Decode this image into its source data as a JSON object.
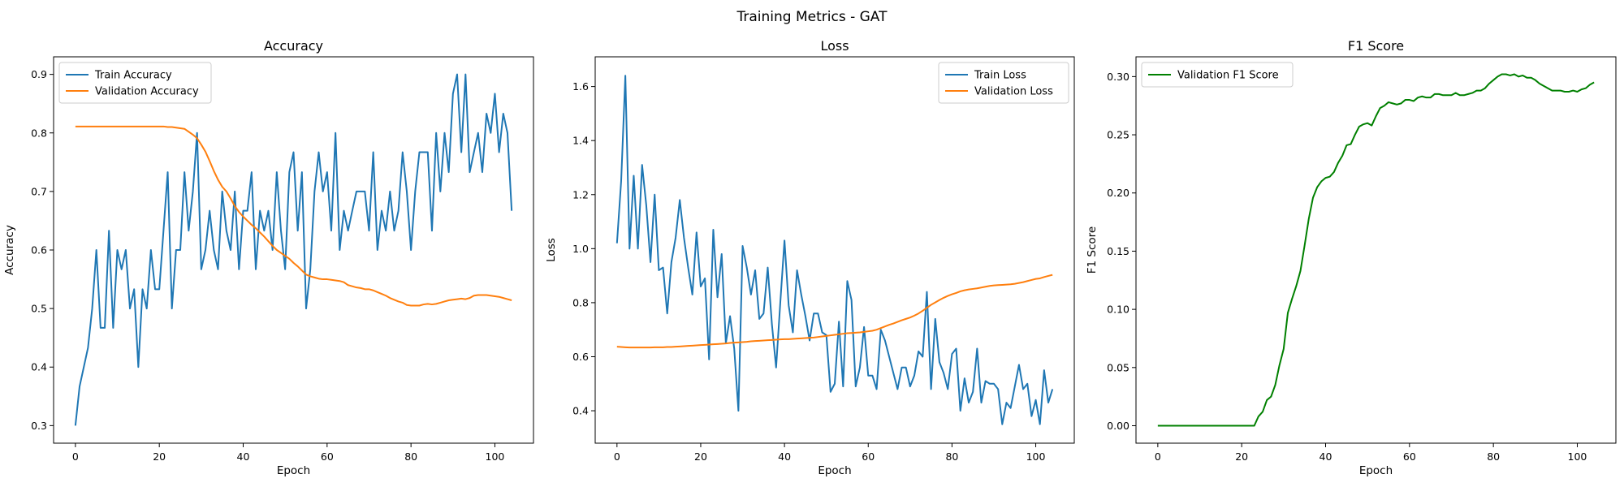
{
  "figure": {
    "title": "Training Metrics - GAT"
  },
  "chart_data": [
    {
      "type": "line",
      "title": "Accuracy",
      "xlabel": "Epoch",
      "ylabel": "Accuracy",
      "xlim": [
        -5.2,
        109.2
      ],
      "ylim": [
        0.27,
        0.93
      ],
      "xticks": [
        0,
        20,
        40,
        60,
        80,
        100
      ],
      "xtick_labels": [
        "0",
        "20",
        "40",
        "60",
        "80",
        "100"
      ],
      "yticks": [
        0.3,
        0.4,
        0.5,
        0.6,
        0.7,
        0.8,
        0.9
      ],
      "ytick_labels": [
        "0.3",
        "0.4",
        "0.5",
        "0.6",
        "0.7",
        "0.8",
        "0.9"
      ],
      "legend_loc": "upper-left",
      "x": [
        0,
        1,
        2,
        3,
        4,
        5,
        6,
        7,
        8,
        9,
        10,
        11,
        12,
        13,
        14,
        15,
        16,
        17,
        18,
        19,
        20,
        21,
        22,
        23,
        24,
        25,
        26,
        27,
        28,
        29,
        30,
        31,
        32,
        33,
        34,
        35,
        36,
        37,
        38,
        39,
        40,
        41,
        42,
        43,
        44,
        45,
        46,
        47,
        48,
        49,
        50,
        51,
        52,
        53,
        54,
        55,
        56,
        57,
        58,
        59,
        60,
        61,
        62,
        63,
        64,
        65,
        66,
        67,
        68,
        69,
        70,
        71,
        72,
        73,
        74,
        75,
        76,
        77,
        78,
        79,
        80,
        81,
        82,
        83,
        84,
        85,
        86,
        87,
        88,
        89,
        90,
        91,
        92,
        93,
        94,
        95,
        96,
        97,
        98,
        99,
        100,
        101,
        102,
        103,
        104
      ],
      "series": [
        {
          "name": "Train Accuracy",
          "color": "#1f77b4",
          "values": [
            0.3,
            0.367,
            0.4,
            0.433,
            0.5,
            0.6,
            0.467,
            0.467,
            0.633,
            0.467,
            0.6,
            0.567,
            0.6,
            0.5,
            0.533,
            0.4,
            0.533,
            0.5,
            0.6,
            0.533,
            0.533,
            0.633,
            0.733,
            0.5,
            0.6,
            0.6,
            0.733,
            0.633,
            0.7,
            0.8,
            0.567,
            0.6,
            0.667,
            0.6,
            0.567,
            0.7,
            0.633,
            0.6,
            0.7,
            0.567,
            0.667,
            0.667,
            0.733,
            0.567,
            0.667,
            0.633,
            0.667,
            0.6,
            0.733,
            0.633,
            0.567,
            0.733,
            0.767,
            0.633,
            0.733,
            0.5,
            0.567,
            0.7,
            0.767,
            0.7,
            0.733,
            0.633,
            0.8,
            0.6,
            0.667,
            0.633,
            0.667,
            0.7,
            0.7,
            0.7,
            0.633,
            0.767,
            0.6,
            0.667,
            0.633,
            0.7,
            0.633,
            0.667,
            0.767,
            0.7,
            0.6,
            0.7,
            0.767,
            0.767,
            0.767,
            0.633,
            0.8,
            0.7,
            0.8,
            0.733,
            0.867,
            0.9,
            0.767,
            0.9,
            0.733,
            0.767,
            0.8,
            0.733,
            0.833,
            0.8,
            0.867,
            0.767,
            0.833,
            0.8,
            0.667
          ]
        },
        {
          "name": "Validation Accuracy",
          "color": "#ff7f0e",
          "values": [
            0.811,
            0.811,
            0.811,
            0.811,
            0.811,
            0.811,
            0.811,
            0.811,
            0.811,
            0.811,
            0.811,
            0.811,
            0.811,
            0.811,
            0.811,
            0.811,
            0.811,
            0.811,
            0.811,
            0.811,
            0.811,
            0.811,
            0.81,
            0.81,
            0.809,
            0.808,
            0.807,
            0.802,
            0.797,
            0.791,
            0.78,
            0.768,
            0.752,
            0.735,
            0.72,
            0.708,
            0.7,
            0.688,
            0.675,
            0.665,
            0.657,
            0.65,
            0.643,
            0.637,
            0.63,
            0.623,
            0.615,
            0.607,
            0.6,
            0.595,
            0.59,
            0.585,
            0.578,
            0.572,
            0.565,
            0.558,
            0.555,
            0.553,
            0.551,
            0.55,
            0.55,
            0.549,
            0.548,
            0.547,
            0.545,
            0.54,
            0.538,
            0.536,
            0.535,
            0.533,
            0.533,
            0.531,
            0.528,
            0.525,
            0.522,
            0.518,
            0.515,
            0.512,
            0.51,
            0.506,
            0.505,
            0.505,
            0.505,
            0.507,
            0.508,
            0.507,
            0.508,
            0.51,
            0.512,
            0.514,
            0.515,
            0.516,
            0.517,
            0.516,
            0.518,
            0.522,
            0.523,
            0.523,
            0.523,
            0.522,
            0.521,
            0.52,
            0.518,
            0.516,
            0.514
          ]
        }
      ]
    },
    {
      "type": "line",
      "title": "Loss",
      "xlabel": "Epoch",
      "ylabel": "Loss",
      "xlim": [
        -5.2,
        109.2
      ],
      "ylim": [
        0.28,
        1.71
      ],
      "xticks": [
        0,
        20,
        40,
        60,
        80,
        100
      ],
      "xtick_labels": [
        "0",
        "20",
        "40",
        "60",
        "80",
        "100"
      ],
      "yticks": [
        0.4,
        0.6,
        0.8,
        1.0,
        1.2,
        1.4,
        1.6
      ],
      "ytick_labels": [
        "0.4",
        "0.6",
        "0.8",
        "1.0",
        "1.2",
        "1.4",
        "1.6"
      ],
      "legend_loc": "upper-right",
      "x": [
        0,
        1,
        2,
        3,
        4,
        5,
        6,
        7,
        8,
        9,
        10,
        11,
        12,
        13,
        14,
        15,
        16,
        17,
        18,
        19,
        20,
        21,
        22,
        23,
        24,
        25,
        26,
        27,
        28,
        29,
        30,
        31,
        32,
        33,
        34,
        35,
        36,
        37,
        38,
        39,
        40,
        41,
        42,
        43,
        44,
        45,
        46,
        47,
        48,
        49,
        50,
        51,
        52,
        53,
        54,
        55,
        56,
        57,
        58,
        59,
        60,
        61,
        62,
        63,
        64,
        65,
        66,
        67,
        68,
        69,
        70,
        71,
        72,
        73,
        74,
        75,
        76,
        77,
        78,
        79,
        80,
        81,
        82,
        83,
        84,
        85,
        86,
        87,
        88,
        89,
        90,
        91,
        92,
        93,
        94,
        95,
        96,
        97,
        98,
        99,
        100,
        101,
        102,
        103,
        104
      ],
      "series": [
        {
          "name": "Train Loss",
          "color": "#1f77b4",
          "values": [
            1.02,
            1.25,
            1.64,
            1.0,
            1.27,
            1.0,
            1.31,
            1.16,
            0.95,
            1.2,
            0.92,
            0.93,
            0.76,
            0.95,
            1.04,
            1.18,
            1.04,
            0.93,
            0.83,
            1.06,
            0.86,
            0.89,
            0.59,
            1.07,
            0.82,
            0.98,
            0.65,
            0.75,
            0.63,
            0.4,
            1.01,
            0.93,
            0.83,
            0.92,
            0.74,
            0.76,
            0.93,
            0.72,
            0.56,
            0.8,
            1.03,
            0.79,
            0.69,
            0.92,
            0.83,
            0.75,
            0.66,
            0.76,
            0.76,
            0.69,
            0.68,
            0.47,
            0.5,
            0.73,
            0.49,
            0.88,
            0.81,
            0.49,
            0.56,
            0.71,
            0.53,
            0.53,
            0.48,
            0.7,
            0.66,
            0.6,
            0.54,
            0.48,
            0.56,
            0.56,
            0.49,
            0.53,
            0.62,
            0.6,
            0.84,
            0.48,
            0.74,
            0.58,
            0.54,
            0.48,
            0.61,
            0.63,
            0.4,
            0.52,
            0.43,
            0.47,
            0.63,
            0.43,
            0.51,
            0.5,
            0.5,
            0.48,
            0.35,
            0.43,
            0.41,
            0.49,
            0.57,
            0.48,
            0.5,
            0.38,
            0.44,
            0.35,
            0.55,
            0.43,
            0.48
          ]
        },
        {
          "name": "Validation Loss",
          "color": "#ff7f0e",
          "values": [
            0.637,
            0.636,
            0.635,
            0.634,
            0.634,
            0.634,
            0.634,
            0.634,
            0.634,
            0.635,
            0.635,
            0.635,
            0.636,
            0.636,
            0.637,
            0.638,
            0.639,
            0.64,
            0.641,
            0.642,
            0.643,
            0.644,
            0.645,
            0.646,
            0.647,
            0.648,
            0.649,
            0.651,
            0.652,
            0.653,
            0.654,
            0.655,
            0.657,
            0.658,
            0.659,
            0.66,
            0.661,
            0.662,
            0.663,
            0.664,
            0.665,
            0.665,
            0.666,
            0.667,
            0.668,
            0.669,
            0.67,
            0.671,
            0.673,
            0.675,
            0.677,
            0.679,
            0.681,
            0.683,
            0.685,
            0.687,
            0.688,
            0.689,
            0.69,
            0.692,
            0.694,
            0.696,
            0.7,
            0.706,
            0.712,
            0.718,
            0.723,
            0.729,
            0.735,
            0.74,
            0.745,
            0.752,
            0.76,
            0.77,
            0.781,
            0.792,
            0.801,
            0.81,
            0.818,
            0.825,
            0.831,
            0.836,
            0.842,
            0.846,
            0.849,
            0.851,
            0.853,
            0.856,
            0.859,
            0.862,
            0.864,
            0.865,
            0.866,
            0.867,
            0.868,
            0.87,
            0.873,
            0.876,
            0.88,
            0.884,
            0.888,
            0.89,
            0.895,
            0.899,
            0.903
          ]
        }
      ]
    },
    {
      "type": "line",
      "title": "F1 Score",
      "xlabel": "Epoch",
      "ylabel": "F1 Score",
      "xlim": [
        -5.2,
        109.2
      ],
      "ylim": [
        -0.015,
        0.317
      ],
      "xticks": [
        0,
        20,
        40,
        60,
        80,
        100
      ],
      "xtick_labels": [
        "0",
        "20",
        "40",
        "60",
        "80",
        "100"
      ],
      "yticks": [
        0.0,
        0.05,
        0.1,
        0.15,
        0.2,
        0.25,
        0.3
      ],
      "ytick_labels": [
        "0.00",
        "0.05",
        "0.10",
        "0.15",
        "0.20",
        "0.25",
        "0.30"
      ],
      "legend_loc": "upper-left",
      "x": [
        0,
        1,
        2,
        3,
        4,
        5,
        6,
        7,
        8,
        9,
        10,
        11,
        12,
        13,
        14,
        15,
        16,
        17,
        18,
        19,
        20,
        21,
        22,
        23,
        24,
        25,
        26,
        27,
        28,
        29,
        30,
        31,
        32,
        33,
        34,
        35,
        36,
        37,
        38,
        39,
        40,
        41,
        42,
        43,
        44,
        45,
        46,
        47,
        48,
        49,
        50,
        51,
        52,
        53,
        54,
        55,
        56,
        57,
        58,
        59,
        60,
        61,
        62,
        63,
        64,
        65,
        66,
        67,
        68,
        69,
        70,
        71,
        72,
        73,
        74,
        75,
        76,
        77,
        78,
        79,
        80,
        81,
        82,
        83,
        84,
        85,
        86,
        87,
        88,
        89,
        90,
        91,
        92,
        93,
        94,
        95,
        96,
        97,
        98,
        99,
        100,
        101,
        102,
        103,
        104
      ],
      "series": [
        {
          "name": "Validation F1 Score",
          "color": "#008000",
          "values": [
            0,
            0,
            0,
            0,
            0,
            0,
            0,
            0,
            0,
            0,
            0,
            0,
            0,
            0,
            0,
            0,
            0,
            0,
            0,
            0,
            0,
            0,
            0,
            0,
            0.008,
            0.012,
            0.022,
            0.025,
            0.035,
            0.052,
            0.066,
            0.097,
            0.109,
            0.12,
            0.133,
            0.155,
            0.178,
            0.196,
            0.205,
            0.21,
            0.213,
            0.214,
            0.218,
            0.226,
            0.232,
            0.241,
            0.242,
            0.25,
            0.257,
            0.259,
            0.26,
            0.258,
            0.266,
            0.273,
            0.275,
            0.278,
            0.277,
            0.276,
            0.277,
            0.28,
            0.28,
            0.279,
            0.282,
            0.283,
            0.282,
            0.282,
            0.285,
            0.285,
            0.284,
            0.284,
            0.284,
            0.286,
            0.284,
            0.284,
            0.285,
            0.286,
            0.288,
            0.288,
            0.29,
            0.294,
            0.297,
            0.3,
            0.302,
            0.302,
            0.301,
            0.302,
            0.3,
            0.301,
            0.299,
            0.299,
            0.297,
            0.294,
            0.292,
            0.29,
            0.288,
            0.288,
            0.288,
            0.287,
            0.287,
            0.288,
            0.287,
            0.289,
            0.29,
            0.293,
            0.295
          ]
        }
      ]
    }
  ]
}
